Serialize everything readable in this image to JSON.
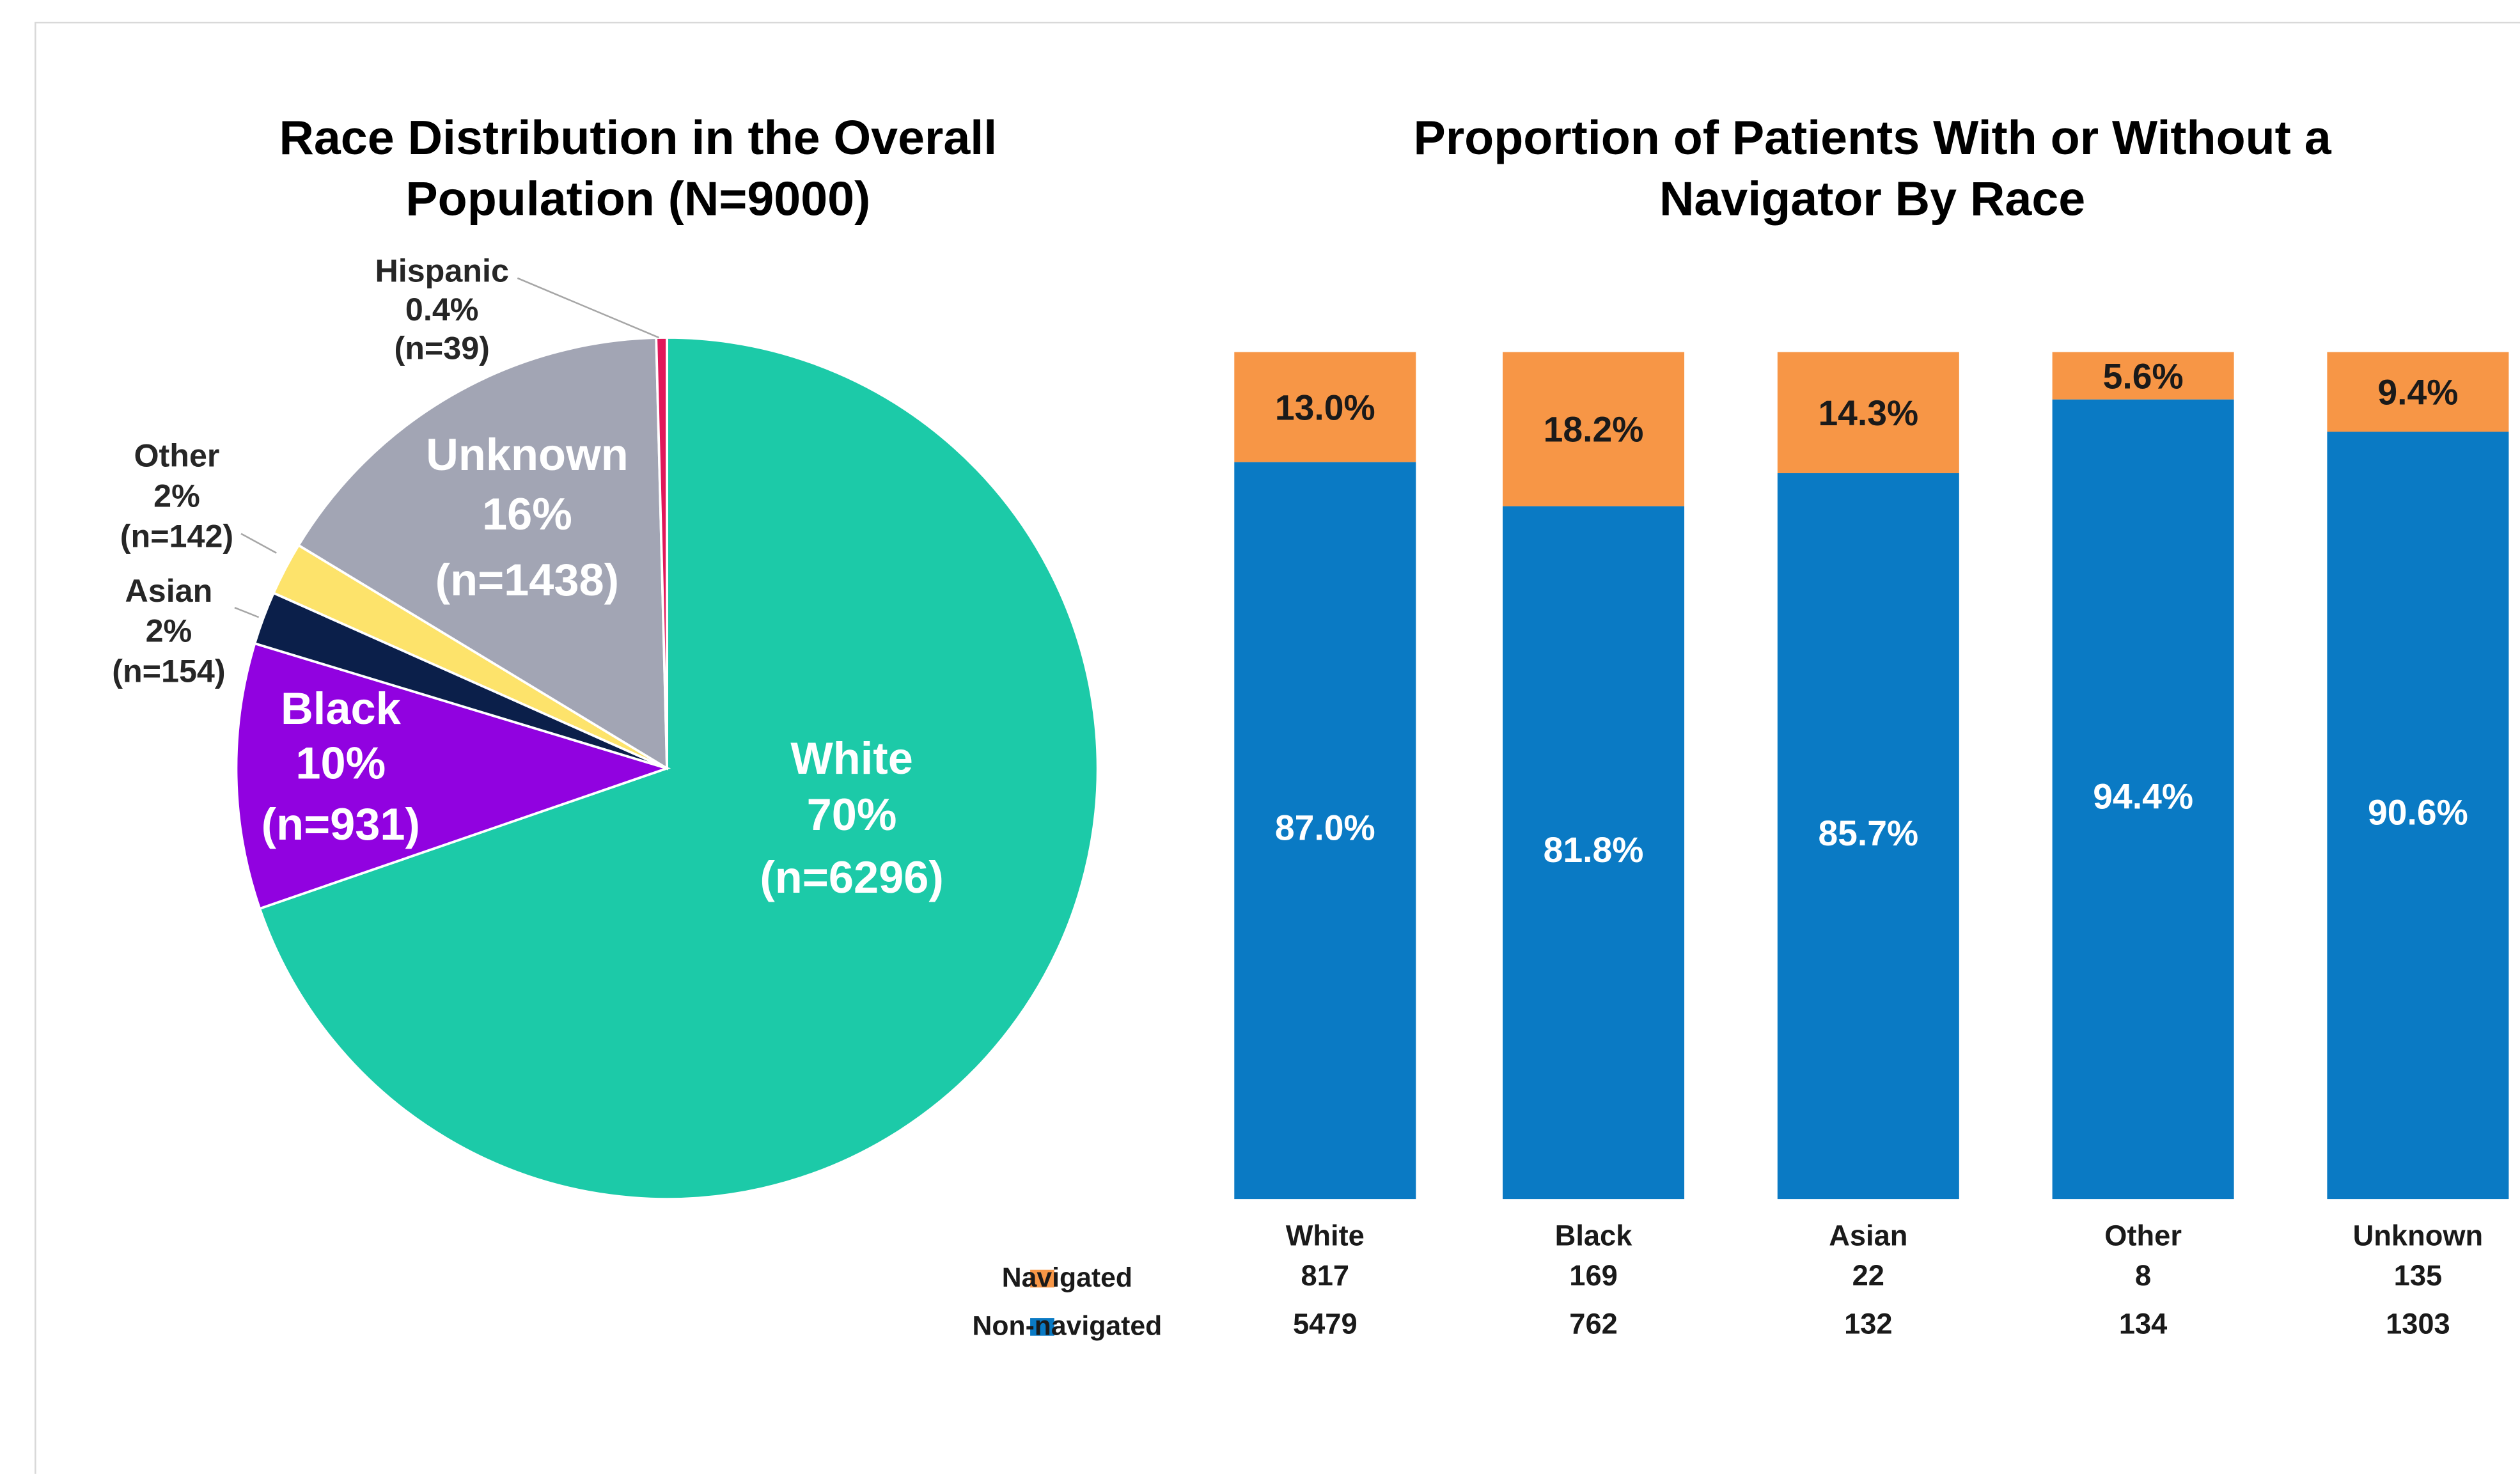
{
  "chart_data": [
    {
      "type": "pie",
      "title": [
        "Race Distribution in the Overall",
        "Population (N=9000)"
      ],
      "categories": [
        "White",
        "Black",
        "Asian",
        "Other",
        "Unknown",
        "Hispanic"
      ],
      "values": [
        70,
        10,
        2,
        2,
        16,
        0.4
      ],
      "value_labels": [
        "70%",
        "10%",
        "2%",
        "2%",
        "16%",
        "0.4%"
      ],
      "counts": [
        6296,
        931,
        154,
        142,
        1438,
        39
      ],
      "count_labels": [
        "(n=6296)",
        "(n=931)",
        "(n=154)",
        "(n=142)",
        "(n=1438)",
        "(n=39)"
      ],
      "colors": [
        "#1ccaa8",
        "#9102e0",
        "#0b1f4a",
        "#fde36b",
        "#a2a5b4",
        "#e0185a"
      ]
    },
    {
      "type": "stacked_bar",
      "title": [
        "Proportion of Patients With or Without a",
        "Navigator By Race"
      ],
      "categories": [
        "White",
        "Black",
        "Asian",
        "Other",
        "Unknown"
      ],
      "series": [
        {
          "name": "Navigated",
          "color": "#f79646",
          "values": [
            13.0,
            18.2,
            14.3,
            5.6,
            9.4
          ],
          "value_labels": [
            "13.0%",
            "18.2%",
            "14.3%",
            "5.6%",
            "9.4%"
          ],
          "counts": [
            817,
            169,
            22,
            8,
            135
          ]
        },
        {
          "name": "Non-navigated",
          "color": "#0a7ac4",
          "values": [
            87.0,
            81.8,
            85.7,
            94.4,
            90.6
          ],
          "value_labels": [
            "87.0%",
            "81.8%",
            "85.7%",
            "94.4%",
            "90.6%"
          ],
          "counts": [
            5479,
            762,
            132,
            134,
            1303
          ]
        }
      ]
    }
  ]
}
